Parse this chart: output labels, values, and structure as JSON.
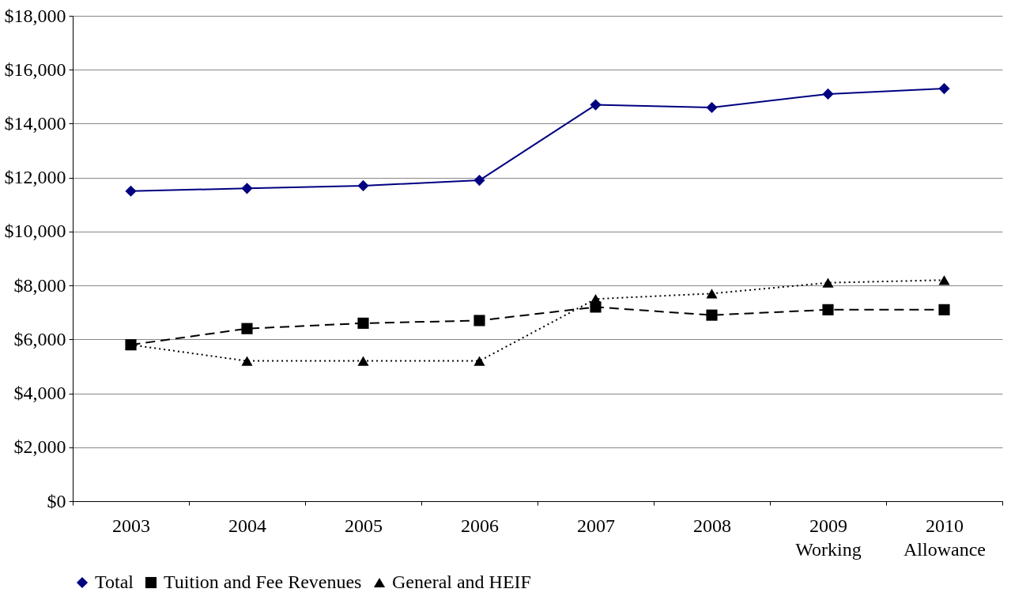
{
  "chart_data": {
    "type": "line",
    "categories": [
      "2003",
      "2004",
      "2005",
      "2006",
      "2007",
      "2008",
      "2009\nWorking",
      "2010\nAllowance"
    ],
    "series": [
      {
        "name": "Total",
        "color": "#000080",
        "marker": "diamond",
        "line_style": "solid",
        "values": [
          11500,
          11600,
          11700,
          11900,
          14700,
          14600,
          15100,
          15300
        ]
      },
      {
        "name": "Tuition and Fee Revenues",
        "color": "#000000",
        "marker": "square",
        "line_style": "dashed",
        "values": [
          5800,
          6400,
          6600,
          6700,
          7200,
          6900,
          7100,
          7100
        ]
      },
      {
        "name": "General and HEIF",
        "color": "#000000",
        "marker": "triangle",
        "line_style": "dotted",
        "values": [
          5800,
          5200,
          5200,
          5200,
          7500,
          7700,
          8100,
          8200
        ]
      }
    ],
    "ylim": [
      0,
      18000
    ],
    "yticks": [
      {
        "value": 0,
        "label": "$0"
      },
      {
        "value": 2000,
        "label": "$2,000"
      },
      {
        "value": 4000,
        "label": "$4,000"
      },
      {
        "value": 6000,
        "label": "$6,000"
      },
      {
        "value": 8000,
        "label": "$8,000"
      },
      {
        "value": 10000,
        "label": "$10,000"
      },
      {
        "value": 12000,
        "label": "$12,000"
      },
      {
        "value": 14000,
        "label": "$14,000"
      },
      {
        "value": 16000,
        "label": "$16,000"
      },
      {
        "value": 18000,
        "label": "$18,000"
      }
    ],
    "grid": "y",
    "legend": "bottom"
  }
}
